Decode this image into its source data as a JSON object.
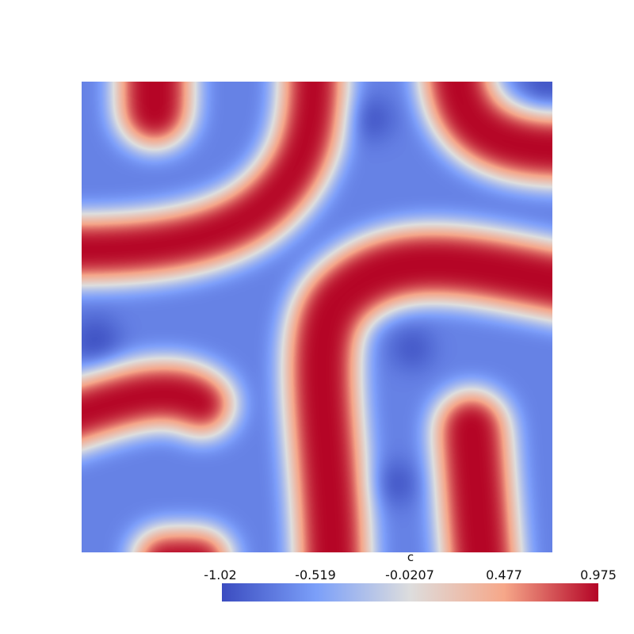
{
  "chart_data": {
    "type": "heatmap",
    "title": "",
    "colorbar": {
      "title": "c",
      "range": [
        -1.02,
        0.975
      ],
      "tick_labels": [
        "-1.02",
        "-0.519",
        "-0.0207",
        "0.477",
        "0.975"
      ],
      "tick_values": [
        -1.02,
        -0.519,
        -0.0207,
        0.477,
        0.975
      ],
      "colormap": "coolwarm",
      "colors": [
        "#3b4cc0",
        "#7b9ff9",
        "#dddddd",
        "#f6a789",
        "#b40426"
      ],
      "orientation": "horizontal",
      "placement": "bottom"
    },
    "field_description_regions": []
  }
}
